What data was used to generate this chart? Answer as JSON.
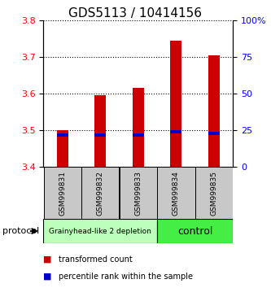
{
  "title": "GDS5113 / 10414156",
  "samples": [
    "GSM999831",
    "GSM999832",
    "GSM999833",
    "GSM999834",
    "GSM999835"
  ],
  "bar_bottoms": [
    3.4,
    3.4,
    3.4,
    3.4,
    3.4
  ],
  "bar_tops": [
    3.5,
    3.595,
    3.615,
    3.745,
    3.705
  ],
  "percentile_values": [
    3.487,
    3.487,
    3.487,
    3.496,
    3.492
  ],
  "ylim_left": [
    3.4,
    3.8
  ],
  "ylim_right": [
    0,
    100
  ],
  "yticks_left": [
    3.4,
    3.5,
    3.6,
    3.7,
    3.8
  ],
  "yticks_right": [
    0,
    25,
    50,
    75,
    100
  ],
  "bar_color": "#cc0000",
  "percentile_color": "#0000cc",
  "group_labels": [
    "Grainyhead-like 2 depletion",
    "control"
  ],
  "group_ranges": [
    [
      0,
      3
    ],
    [
      3,
      5
    ]
  ],
  "group_colors": [
    "#bbffbb",
    "#44ee44"
  ],
  "sample_bg_color": "#c8c8c8",
  "bg_color": "#ffffff",
  "legend_red_label": "transformed count",
  "legend_blue_label": "percentile rank within the sample",
  "protocol_label": "protocol",
  "title_fontsize": 11,
  "tick_fontsize": 8,
  "sample_fontsize": 6.5
}
